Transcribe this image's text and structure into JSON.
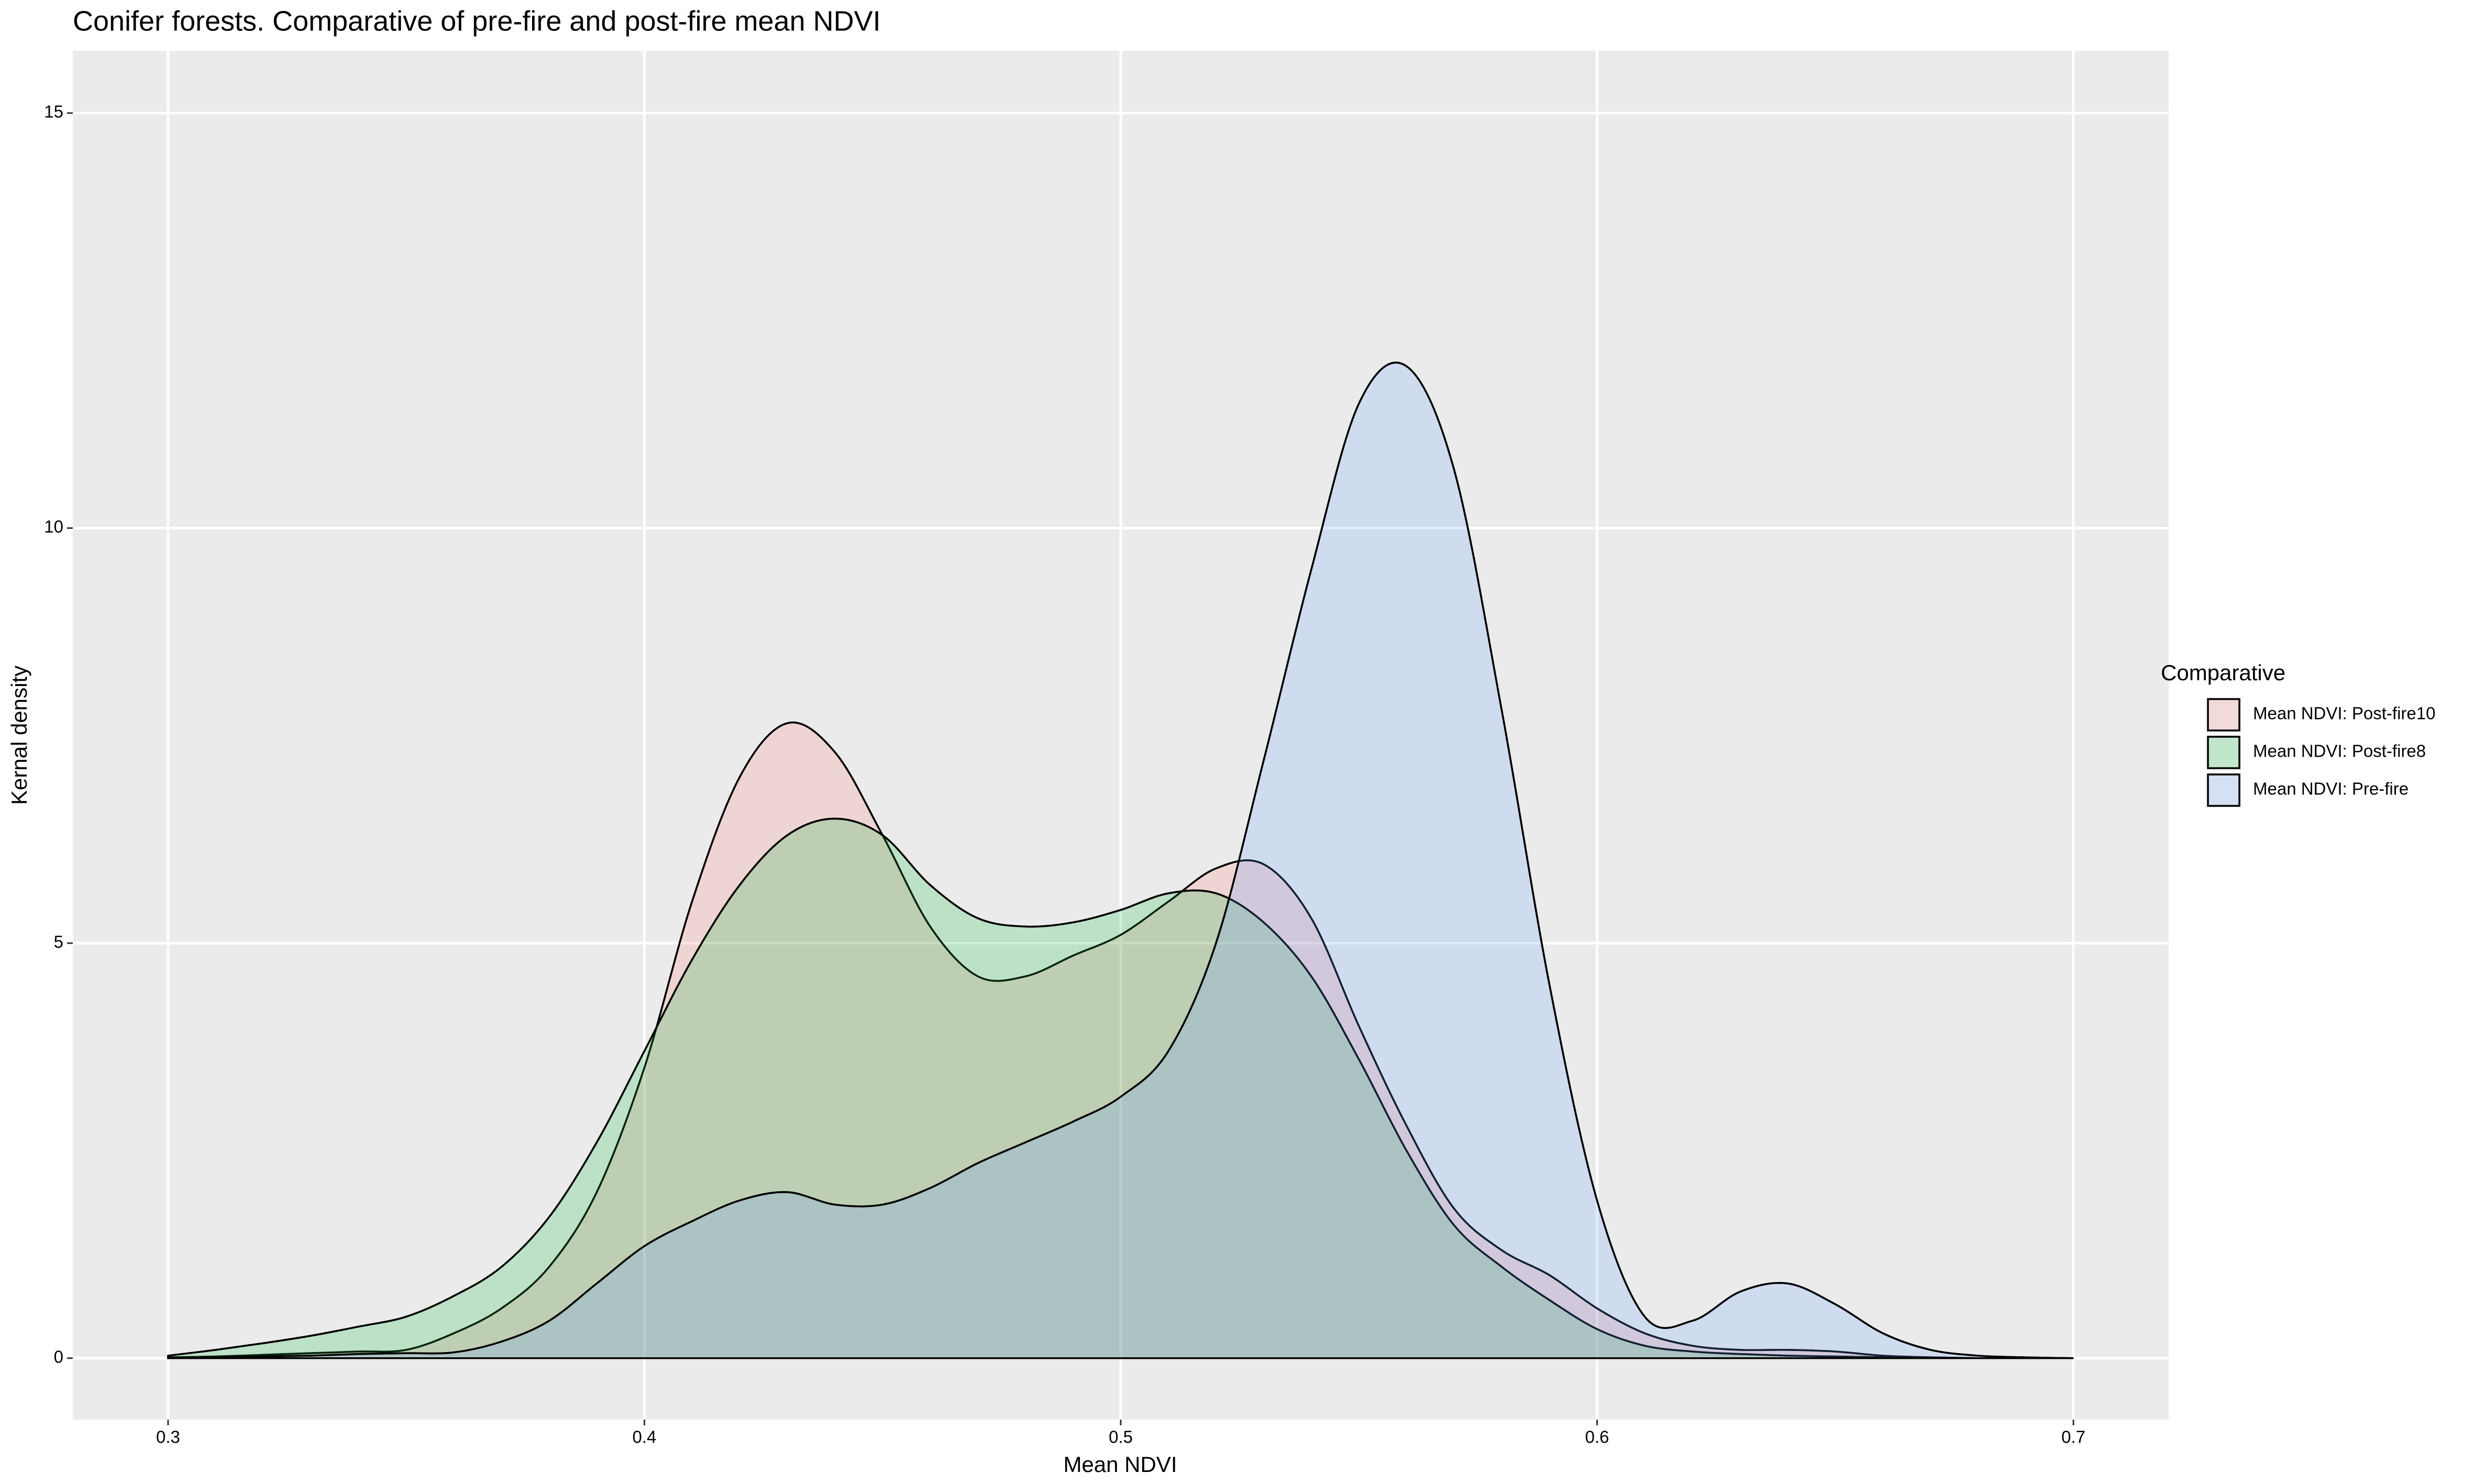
{
  "chart_data": {
    "type": "density",
    "title": "Conifer forests. Comparative of pre-fire and post-fire mean NDVI",
    "x_label": "Mean NDVI",
    "y_label": "Kernal density",
    "legend_title": "Comparative",
    "legend_position": "right",
    "x": [
      0.3,
      0.31,
      0.32,
      0.33,
      0.34,
      0.35,
      0.36,
      0.37,
      0.38,
      0.39,
      0.4,
      0.41,
      0.42,
      0.43,
      0.44,
      0.45,
      0.46,
      0.47,
      0.48,
      0.49,
      0.5,
      0.51,
      0.52,
      0.53,
      0.54,
      0.55,
      0.56,
      0.57,
      0.58,
      0.59,
      0.6,
      0.61,
      0.62,
      0.63,
      0.64,
      0.65,
      0.66,
      0.67,
      0.68,
      0.69,
      0.7
    ],
    "series": [
      {
        "name": "Mean NDVI: Post-fire10",
        "color": "#F8766D",
        "values": [
          0.01,
          0.02,
          0.04,
          0.06,
          0.08,
          0.1,
          0.3,
          0.6,
          1.1,
          2.0,
          3.5,
          5.5,
          7.0,
          7.65,
          7.3,
          6.3,
          5.2,
          4.6,
          4.6,
          4.85,
          5.1,
          5.5,
          5.9,
          5.95,
          5.3,
          4.0,
          2.8,
          1.8,
          1.3,
          1.0,
          0.6,
          0.3,
          0.15,
          0.1,
          0.1,
          0.08,
          0.03,
          0.01,
          0,
          0,
          0
        ]
      },
      {
        "name": "Mean NDVI: Post-fire8",
        "color": "#00BA38",
        "values": [
          0.03,
          0.1,
          0.18,
          0.27,
          0.38,
          0.5,
          0.75,
          1.1,
          1.7,
          2.6,
          3.7,
          4.8,
          5.7,
          6.3,
          6.5,
          6.3,
          5.7,
          5.3,
          5.2,
          5.25,
          5.4,
          5.6,
          5.6,
          5.25,
          4.6,
          3.6,
          2.5,
          1.6,
          1.1,
          0.7,
          0.35,
          0.15,
          0.08,
          0.05,
          0.03,
          0.02,
          0.01,
          0,
          0,
          0,
          0
        ]
      },
      {
        "name": "Mean NDVI: Pre-fire",
        "color": "#619CFF",
        "values": [
          0,
          0.01,
          0.02,
          0.03,
          0.05,
          0.06,
          0.07,
          0.2,
          0.45,
          0.9,
          1.35,
          1.65,
          1.9,
          2.0,
          1.85,
          1.85,
          2.05,
          2.35,
          2.6,
          2.85,
          3.15,
          3.7,
          5.0,
          7.2,
          9.5,
          11.5,
          11.95,
          10.7,
          7.8,
          4.5,
          1.9,
          0.5,
          0.45,
          0.8,
          0.9,
          0.65,
          0.3,
          0.1,
          0.03,
          0.01,
          0
        ]
      }
    ],
    "fill_opacity": 0.2,
    "xlim": [
      0.28,
      0.72
    ],
    "xticks": [
      0.3,
      0.4,
      0.5,
      0.6,
      0.7
    ],
    "ylim": [
      -0.74,
      15.75
    ],
    "yticks": [
      0,
      5,
      10,
      15
    ],
    "grid": true
  }
}
